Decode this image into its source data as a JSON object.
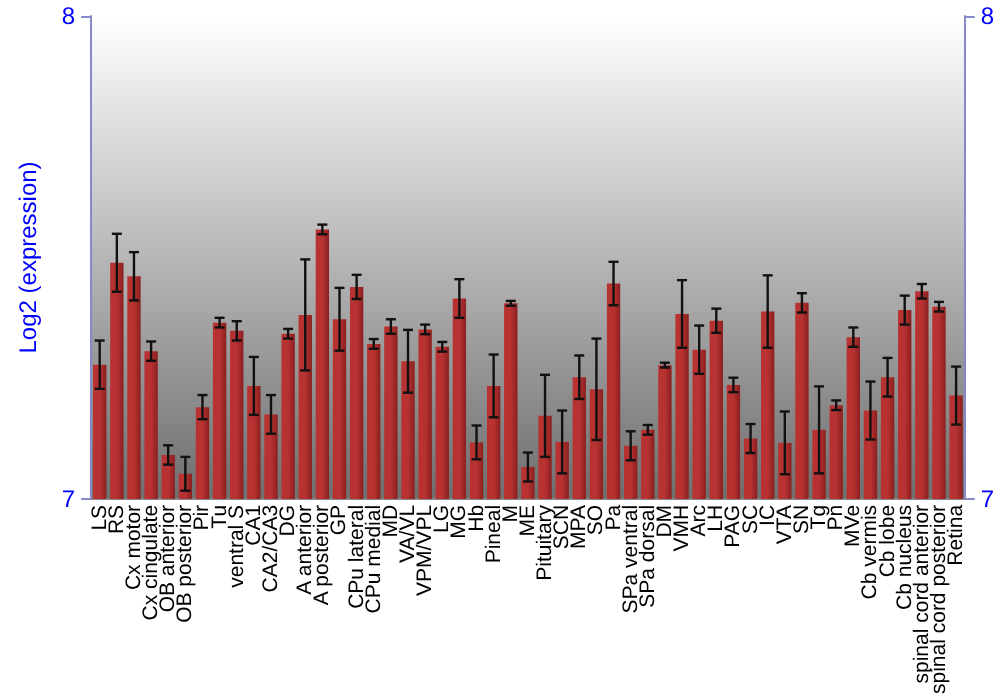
{
  "chart_data": {
    "type": "bar",
    "ylabel": "Log2 (expression)",
    "categories": [
      "LS",
      "RS",
      "Cx motor",
      "Cx cingulate",
      "OB anterior",
      "OB posterior",
      "Pir",
      "Tu",
      "ventral S",
      "CA1",
      "CA2/CA3",
      "DG",
      "A anterior",
      "A posterior",
      "GP",
      "CPu lateral",
      "CPu medial",
      "MD",
      "VA/VL",
      "VPM/VPL",
      "LG",
      "MG",
      "Hb",
      "Pineal",
      "M",
      "ME",
      "Pituitary",
      "SCN",
      "MPA",
      "SO",
      "Pa",
      "SPa ventral",
      "SPa dorsal",
      "DM",
      "VMH",
      "Arc",
      "LH",
      "PAG",
      "SC",
      "IC",
      "VTA",
      "SN",
      "Tg",
      "Pn",
      "MVe",
      "Cb vermis",
      "Cb lobe",
      "Cb nucleus",
      "spinal cord anterior",
      "spinal cord posterior",
      "Retina"
    ],
    "values": [
      7.278,
      7.489,
      7.461,
      7.306,
      7.091,
      7.052,
      7.19,
      7.365,
      7.348,
      7.234,
      7.175,
      7.342,
      7.381,
      7.558,
      7.372,
      7.439,
      7.321,
      7.357,
      7.285,
      7.351,
      7.315,
      7.415,
      7.117,
      7.234,
      7.405,
      7.066,
      7.172,
      7.118,
      7.252,
      7.227,
      7.446,
      7.11,
      7.143,
      7.277,
      7.383,
      7.309,
      7.369,
      7.236,
      7.125,
      7.388,
      7.116,
      7.406,
      7.143,
      7.194,
      7.335,
      7.183,
      7.252,
      7.391,
      7.43,
      7.398,
      7.214
    ],
    "errors": [
      0.05,
      0.06,
      0.05,
      0.02,
      0.02,
      0.035,
      0.025,
      0.01,
      0.02,
      0.06,
      0.04,
      0.01,
      0.115,
      0.01,
      0.065,
      0.025,
      0.01,
      0.015,
      0.065,
      0.01,
      0.01,
      0.04,
      0.035,
      0.065,
      0.005,
      0.03,
      0.085,
      0.065,
      0.045,
      0.105,
      0.045,
      0.03,
      0.01,
      0.005,
      0.07,
      0.05,
      0.025,
      0.015,
      0.03,
      0.075,
      0.065,
      0.02,
      0.09,
      0.01,
      0.02,
      0.06,
      0.04,
      0.03,
      0.015,
      0.01,
      0.06
    ],
    "color": "#b83232",
    "ylim": [
      7,
      8
    ],
    "yticks": [
      7,
      8
    ],
    "y2lim": [
      7,
      8
    ],
    "y2ticks": [
      7,
      8
    ],
    "grid": false
  }
}
